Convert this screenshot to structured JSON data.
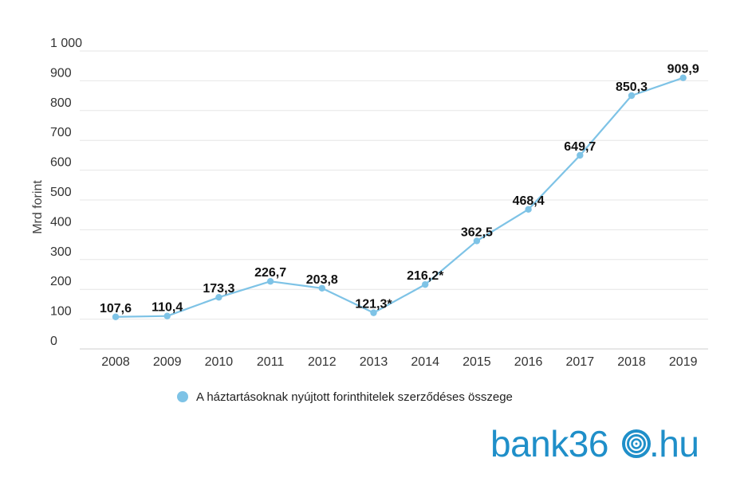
{
  "chart_data": {
    "type": "line",
    "categories": [
      "2008",
      "2009",
      "2010",
      "2011",
      "2012",
      "2013",
      "2014",
      "2015",
      "2016",
      "2017",
      "2018",
      "2019"
    ],
    "series": [
      {
        "name": "A háztartásoknak nyújtott forinthitelek szerződéses összege",
        "values": [
          107.6,
          110.4,
          173.3,
          226.7,
          203.8,
          121.3,
          216.2,
          362.5,
          468.4,
          649.7,
          850.3,
          909.9
        ],
        "labels": [
          "107,6",
          "110,4",
          "173,3",
          "226,7",
          "203,8",
          "121,3*",
          "216,2*",
          "362,5",
          "468,4",
          "649,7",
          "850,3",
          "909,9"
        ],
        "color": "#7ec3e6"
      }
    ],
    "ylabel": "Mrd forint",
    "ylim": [
      0,
      1000
    ],
    "yticks": [
      0,
      100,
      200,
      300,
      400,
      500,
      600,
      700,
      800,
      900,
      1000
    ],
    "ytick_labels": [
      "0",
      "100",
      "200",
      "300",
      "400",
      "500",
      "600",
      "700",
      "800",
      "900",
      "1 000"
    ],
    "grid": true,
    "legend_position": "bottom"
  },
  "brand": {
    "text_before": "bank36",
    "text_after": ".hu",
    "logo_icon": "concentric-rings-icon",
    "color": "#1f8fc9"
  }
}
